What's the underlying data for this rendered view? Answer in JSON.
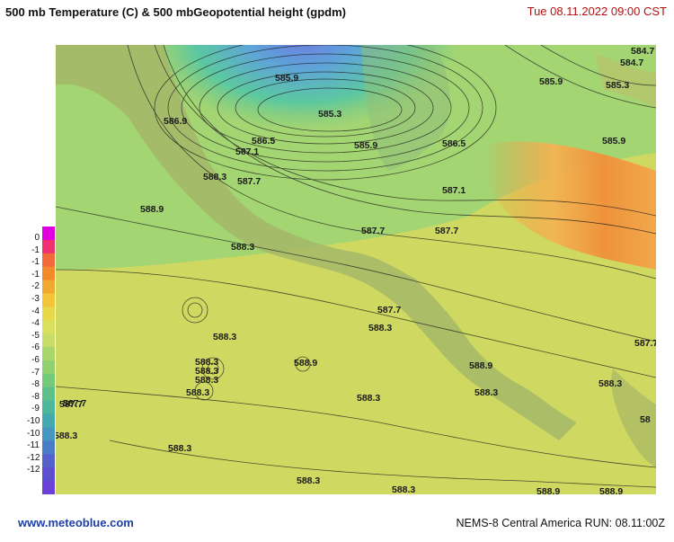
{
  "header": {
    "title": "500 mb Temperature (C)  & 500 mbGeopotential height (gpdm)",
    "datetime": "Tue 08.11.2022  09:00 CST"
  },
  "legend": {
    "labels": [
      "0",
      "-1",
      "-1",
      "-1",
      "-2",
      "-3",
      "-4",
      "-4",
      "-5",
      "-6",
      "-6",
      "-7",
      "-8",
      "-8",
      "-9",
      "-10",
      "-10",
      "-11",
      "-12",
      "-12"
    ],
    "colors": [
      "#e000e0",
      "#f03070",
      "#f26a3a",
      "#f08a2a",
      "#f0a830",
      "#f3c43a",
      "#e8d84a",
      "#d9e060",
      "#c8dc6a",
      "#a8d66a",
      "#8fd070",
      "#74c97a",
      "#5cc088",
      "#4cb79a",
      "#44aab0",
      "#4596c0",
      "#4a7cc8",
      "#5562cc",
      "#5e4ed0",
      "#6a40d6"
    ]
  },
  "map": {
    "contour_labels": [
      "585.9",
      "585.3",
      "586.9",
      "586.5",
      "587.1",
      "588.3",
      "587.7",
      "585.9",
      "586.5",
      "587.1",
      "588.9",
      "584.7",
      "584.7",
      "585.9",
      "585.3",
      "585.9",
      "588.3",
      "587.7",
      "587.7",
      "587.7",
      "588.3",
      "587.7",
      "587.7",
      "588.3",
      "588.3",
      "588.3",
      "588.3",
      "588.3",
      "588.3",
      "588.9",
      "588.9",
      "588.3",
      "588.3",
      "588.3",
      "588.3",
      "588.3",
      "588.9",
      "588.9",
      "588.3",
      "587.7",
      "588.3",
      "588.3",
      "588.3",
      "58"
    ],
    "colors": {
      "land": "#a7b765",
      "ocean": "#c9d55a",
      "cold": "#6d8ae0",
      "warm": "#f09a3e"
    }
  },
  "footer": {
    "site": "www.meteoblue.com",
    "run": "NEMS-8 Central America  RUN: 08.11:00Z"
  }
}
